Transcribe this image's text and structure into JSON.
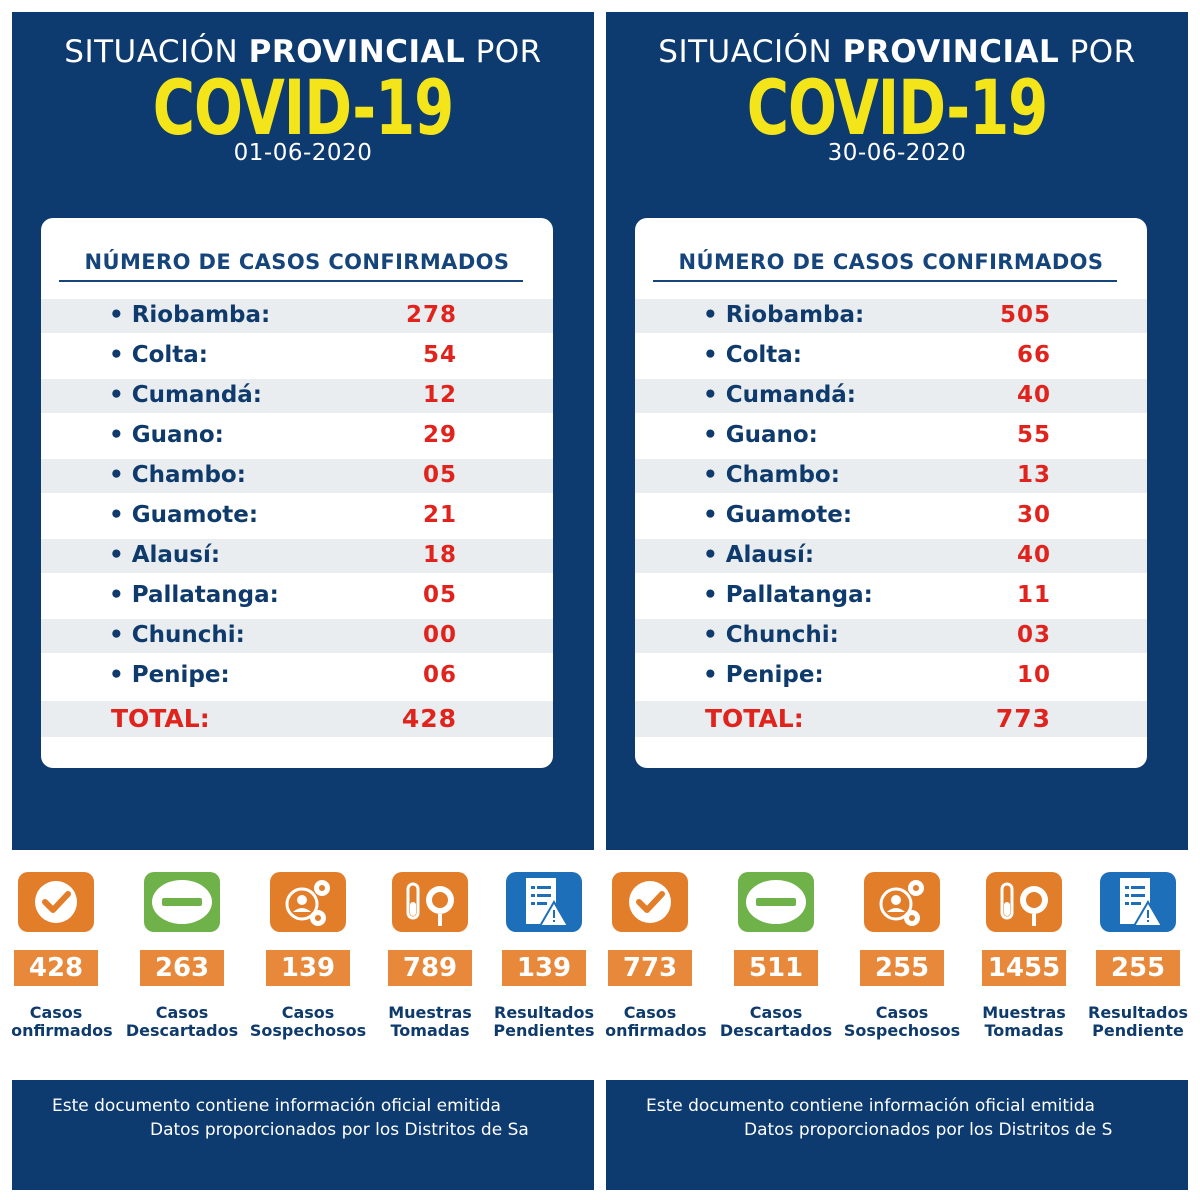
{
  "colors": {
    "navy": "#0d3a6f",
    "yellow": "#f4e51b",
    "red": "#e0231c",
    "orange": "#e27d2a",
    "green": "#6fb24a",
    "blue": "#1c6fb8"
  },
  "panels": [
    {
      "heading_a": "SITUACIÓN ",
      "heading_b": "PROVINCIAL",
      "heading_c": " POR",
      "covid": "COVID-19",
      "date": "01-06-2020",
      "card_title": "NÚMERO DE CASOS CONFIRMADOS",
      "rows": [
        {
          "name": "• Riobamba:",
          "value": "278"
        },
        {
          "name": "• Colta:",
          "value": "54"
        },
        {
          "name": "• Cumandá:",
          "value": "12"
        },
        {
          "name": "• Guano:",
          "value": "29"
        },
        {
          "name": "• Chambo:",
          "value": "05"
        },
        {
          "name": "• Guamote:",
          "value": "21"
        },
        {
          "name": "• Alausí:",
          "value": "18"
        },
        {
          "name": "• Pallatanga:",
          "value": "05"
        },
        {
          "name": "• Chunchi:",
          "value": "00"
        },
        {
          "name": "• Penipe:",
          "value": "06"
        }
      ],
      "total_label": "TOTAL:",
      "total_value": "428",
      "stats": [
        {
          "icon": "check-icon",
          "value": "428",
          "line1": "Casos",
          "line2": "Confirmados"
        },
        {
          "icon": "minus-icon",
          "value": "263",
          "line1": "Casos",
          "line2": "Descartados"
        },
        {
          "icon": "suspects-icon",
          "value": "139",
          "line1": "Casos",
          "line2": "Sospechosos"
        },
        {
          "icon": "sample-icon",
          "value": "789",
          "line1": "Muestras",
          "line2": "Tomadas"
        },
        {
          "icon": "pending-results-icon",
          "value": "139",
          "line1": "Resultados",
          "line2": "Pendientes"
        }
      ],
      "footer_line1": "Este documento contiene información oficial emitida",
      "footer_line2": "Datos proporcionados por los Distritos de Sa"
    },
    {
      "heading_a": "SITUACIÓN ",
      "heading_b": "PROVINCIAL",
      "heading_c": " POR",
      "covid": "COVID-19",
      "date": "30-06-2020",
      "card_title": "NÚMERO DE CASOS CONFIRMADOS",
      "rows": [
        {
          "name": "• Riobamba:",
          "value": "505"
        },
        {
          "name": "• Colta:",
          "value": "66"
        },
        {
          "name": "• Cumandá:",
          "value": "40"
        },
        {
          "name": "• Guano:",
          "value": "55"
        },
        {
          "name": "• Chambo:",
          "value": "13"
        },
        {
          "name": "• Guamote:",
          "value": "30"
        },
        {
          "name": "• Alausí:",
          "value": "40"
        },
        {
          "name": "• Pallatanga:",
          "value": "11"
        },
        {
          "name": "• Chunchi:",
          "value": "03"
        },
        {
          "name": "• Penipe:",
          "value": "10"
        }
      ],
      "total_label": "TOTAL:",
      "total_value": "773",
      "stats": [
        {
          "icon": "check-icon",
          "value": "773",
          "line1": "Casos",
          "line2": "Confirmados"
        },
        {
          "icon": "minus-icon",
          "value": "511",
          "line1": "Casos",
          "line2": "Descartados"
        },
        {
          "icon": "suspects-icon",
          "value": "255",
          "line1": "Casos",
          "line2": "Sospechosos"
        },
        {
          "icon": "sample-icon",
          "value": "1455",
          "line1": "Muestras",
          "line2": "Tomadas"
        },
        {
          "icon": "pending-results-icon",
          "value": "255",
          "line1": "Resultados",
          "line2": "Pendiente"
        }
      ],
      "footer_line1": "Este documento contiene información oficial emitida",
      "footer_line2": "Datos proporcionados por los Distritos de S"
    }
  ]
}
